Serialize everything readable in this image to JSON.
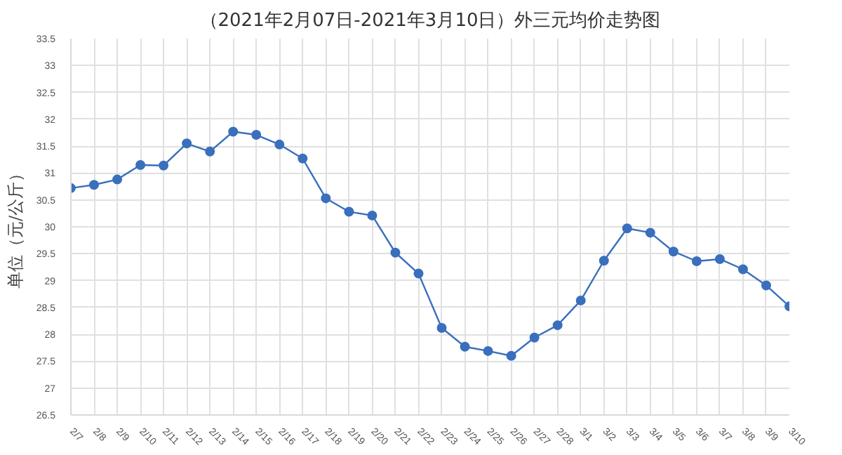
{
  "chart_data": {
    "type": "line",
    "title": "（2021年2月07日-2021年3月10日）外三元均价走势图",
    "ylabel": "单位（元/公斤）",
    "categories": [
      "2/7",
      "2/8",
      "2/9",
      "2/10",
      "2/11",
      "2/12",
      "2/13",
      "2/14",
      "2/15",
      "2/16",
      "2/17",
      "2/18",
      "2/19",
      "2/20",
      "2/21",
      "2/22",
      "2/23",
      "2/24",
      "2/25",
      "2/26",
      "2/27",
      "2/28",
      "3/1",
      "3/2",
      "3/3",
      "3/4",
      "3/5",
      "3/6",
      "3/7",
      "3/8",
      "3/9",
      "3/10"
    ],
    "series": [
      {
        "color": "#3a6fbd",
        "values": [
          30.72,
          30.78,
          30.88,
          31.15,
          31.14,
          31.55,
          31.4,
          31.77,
          31.71,
          31.53,
          31.27,
          30.53,
          30.28,
          30.21,
          29.52,
          29.13,
          28.12,
          27.77,
          27.69,
          27.6,
          27.94,
          28.17,
          28.63,
          29.37,
          29.97,
          29.89,
          29.54,
          29.36,
          29.4,
          29.21,
          28.91,
          28.52
        ]
      }
    ],
    "ylim": [
      26.5,
      33.5
    ],
    "yticks": [
      26.5,
      27,
      27.5,
      28,
      28.5,
      29,
      29.5,
      30,
      30.5,
      31,
      31.5,
      32,
      32.5,
      33,
      33.5
    ],
    "grid": true,
    "marker": "circle",
    "line_style": "solid"
  }
}
